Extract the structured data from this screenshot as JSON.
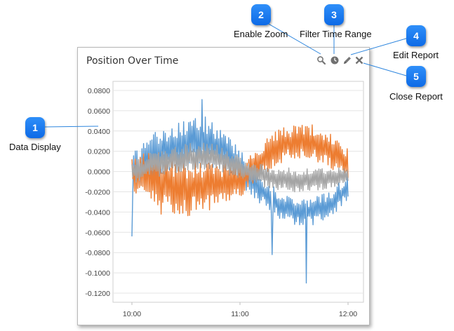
{
  "widget": {
    "title": "Position Over Time",
    "tools": {
      "zoom_icon": "magnifier-icon",
      "filter_icon": "clock-icon",
      "edit_icon": "pencil-icon",
      "close_icon": "close-icon"
    }
  },
  "callouts": [
    {
      "number": "1",
      "label": "Data Display"
    },
    {
      "number": "2",
      "label": "Enable Zoom"
    },
    {
      "number": "3",
      "label": "Filter Time Range"
    },
    {
      "number": "4",
      "label": "Edit Report"
    },
    {
      "number": "5",
      "label": "Close Report"
    }
  ],
  "colors": {
    "badge": "#1a7cf3",
    "callout_line": "#2e86de",
    "series_blue": "#5b9bd5",
    "series_orange": "#ed7d31",
    "series_gray": "#a5a5a5"
  },
  "chart_data": {
    "type": "line",
    "title": "Position Over Time",
    "xlabel": "",
    "ylabel": "",
    "x_ticks": [
      "10:00",
      "11:00",
      "12:00"
    ],
    "x_range": [
      "10:00",
      "12:00"
    ],
    "y_ticks": [
      "0.0800",
      "0.0600",
      "0.0400",
      "0.0200",
      "0.0000",
      "-0.0200",
      "-0.0400",
      "-0.0600",
      "-0.0800",
      "-0.1000",
      "-0.1200"
    ],
    "ylim": [
      -0.12,
      0.08
    ],
    "grid": true,
    "legend": "none",
    "series": [
      {
        "color": "#5b9bd5",
        "times": [
          "10:00",
          "10:10",
          "10:20",
          "10:30",
          "10:40",
          "10:50",
          "11:00",
          "11:10",
          "11:20",
          "11:30",
          "11:40",
          "11:50",
          "12:00"
        ],
        "upper": [
          0.017,
          0.037,
          0.043,
          0.052,
          0.055,
          0.044,
          0.022,
          0.0,
          -0.017,
          -0.025,
          -0.026,
          -0.02,
          -0.002
        ],
        "lower": [
          -0.022,
          -0.01,
          0.0,
          0.005,
          0.006,
          0.0,
          -0.013,
          -0.03,
          -0.045,
          -0.053,
          -0.054,
          -0.048,
          -0.027
        ],
        "spikes": [
          {
            "time": "10:00",
            "value": -0.064
          },
          {
            "time": "10:39",
            "value": 0.071
          },
          {
            "time": "11:18",
            "value": -0.082
          },
          {
            "time": "11:37",
            "value": -0.11
          }
        ]
      },
      {
        "color": "#ed7d31",
        "times": [
          "10:00",
          "10:10",
          "10:20",
          "10:30",
          "10:40",
          "10:50",
          "11:00",
          "11:10",
          "11:20",
          "11:30",
          "11:40",
          "11:50",
          "12:00"
        ],
        "upper": [
          0.016,
          0.02,
          0.017,
          0.013,
          0.009,
          0.008,
          0.006,
          0.023,
          0.042,
          0.046,
          0.047,
          0.038,
          0.022
        ],
        "lower": [
          -0.018,
          -0.038,
          -0.045,
          -0.046,
          -0.04,
          -0.033,
          -0.026,
          -0.008,
          0.006,
          0.012,
          0.012,
          0.004,
          -0.01
        ]
      },
      {
        "color": "#a5a5a5",
        "times": [
          "10:00",
          "10:10",
          "10:20",
          "10:30",
          "10:40",
          "10:50",
          "11:00",
          "11:10",
          "11:20",
          "11:30",
          "11:40",
          "11:50",
          "12:00"
        ],
        "upper": [
          0.01,
          0.018,
          0.022,
          0.027,
          0.03,
          0.025,
          0.015,
          0.008,
          0.005,
          0.003,
          0.003,
          0.004,
          0.008
        ],
        "lower": [
          -0.012,
          -0.008,
          -0.003,
          0.0,
          0.002,
          -0.002,
          -0.008,
          -0.014,
          -0.019,
          -0.021,
          -0.021,
          -0.017,
          -0.012
        ]
      }
    ]
  }
}
